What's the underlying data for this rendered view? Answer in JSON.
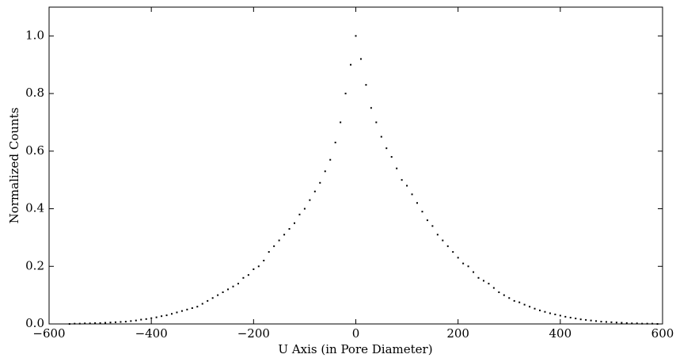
{
  "chart_data": {
    "type": "scatter",
    "xlabel": "U Axis (in Pore Diameter)",
    "ylabel": "Normalized Counts",
    "color": "#000000",
    "x": [
      -560,
      -550,
      -540,
      -530,
      -520,
      -510,
      -500,
      -490,
      -480,
      -470,
      -460,
      -450,
      -440,
      -430,
      -420,
      -410,
      -400,
      -390,
      -380,
      -370,
      -360,
      -350,
      -340,
      -330,
      -320,
      -310,
      -300,
      -290,
      -280,
      -270,
      -260,
      -250,
      -240,
      -230,
      -220,
      -210,
      -200,
      -190,
      -180,
      -170,
      -160,
      -150,
      -140,
      -130,
      -120,
      -110,
      -100,
      -90,
      -80,
      -70,
      -60,
      -50,
      -40,
      -30,
      -20,
      -10,
      0,
      10,
      20,
      30,
      40,
      50,
      60,
      70,
      80,
      90,
      100,
      110,
      120,
      130,
      140,
      150,
      160,
      170,
      180,
      190,
      200,
      210,
      220,
      230,
      240,
      250,
      260,
      270,
      280,
      290,
      300,
      310,
      320,
      330,
      340,
      350,
      360,
      370,
      380,
      390,
      400,
      410,
      420,
      430,
      440,
      450,
      460,
      470,
      480,
      490,
      500,
      510,
      520,
      530,
      540,
      550,
      560,
      570,
      580,
      590
    ],
    "y": [
      0.0,
      0.001,
      0.001,
      0.002,
      0.002,
      0.003,
      0.003,
      0.004,
      0.005,
      0.006,
      0.007,
      0.008,
      0.01,
      0.012,
      0.015,
      0.017,
      0.02,
      0.023,
      0.027,
      0.03,
      0.035,
      0.04,
      0.045,
      0.05,
      0.055,
      0.06,
      0.07,
      0.08,
      0.09,
      0.1,
      0.11,
      0.12,
      0.13,
      0.14,
      0.16,
      0.17,
      0.19,
      0.2,
      0.22,
      0.25,
      0.27,
      0.29,
      0.31,
      0.33,
      0.35,
      0.38,
      0.4,
      0.43,
      0.46,
      0.49,
      0.53,
      0.57,
      0.63,
      0.7,
      0.8,
      0.9,
      1.0,
      0.92,
      0.83,
      0.75,
      0.7,
      0.65,
      0.61,
      0.58,
      0.54,
      0.5,
      0.48,
      0.45,
      0.42,
      0.39,
      0.36,
      0.34,
      0.31,
      0.29,
      0.27,
      0.25,
      0.23,
      0.21,
      0.2,
      0.18,
      0.16,
      0.15,
      0.14,
      0.125,
      0.11,
      0.1,
      0.09,
      0.08,
      0.075,
      0.067,
      0.06,
      0.053,
      0.047,
      0.042,
      0.037,
      0.033,
      0.029,
      0.025,
      0.022,
      0.019,
      0.016,
      0.014,
      0.012,
      0.01,
      0.008,
      0.007,
      0.006,
      0.005,
      0.004,
      0.003,
      0.002,
      0.002,
      0.001,
      0.001,
      0.001,
      0.0
    ],
    "xlim": [
      -600,
      600
    ],
    "xticks": [
      {
        "value": -600,
        "label": "−600"
      },
      {
        "value": -400,
        "label": "−400"
      },
      {
        "value": -200,
        "label": "−200"
      },
      0,
      200,
      400,
      600
    ],
    "ylim": [
      0,
      1.1
    ],
    "yticks": [
      {
        "value": 0,
        "label": "0.0"
      },
      0.2,
      0.4,
      0.6,
      0.8,
      {
        "value": 1,
        "label": "1.0"
      }
    ]
  }
}
